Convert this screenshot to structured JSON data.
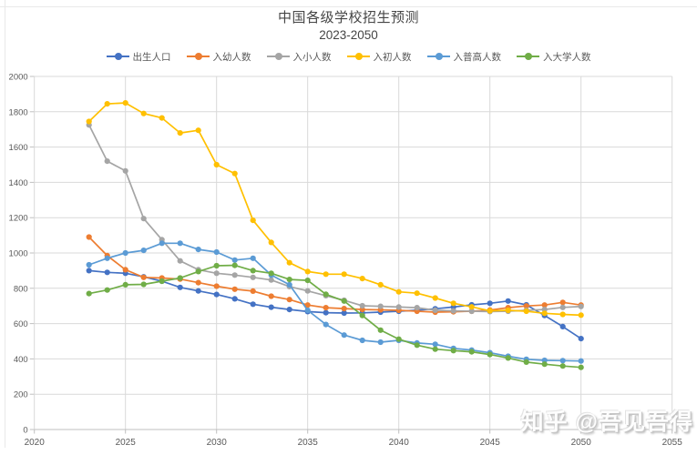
{
  "header": {
    "title": "中国各级学校招生预测",
    "subtitle": "2023-2050"
  },
  "watermark": {
    "text": "知乎 @吾见吾得"
  },
  "colors": {
    "grid": "#d9d9d9",
    "axis": "#bfbfbf",
    "tick_label": "#595959",
    "title_text": "#454545"
  },
  "chart_data": {
    "type": "line",
    "title": "中国各级学校招生预测",
    "subtitle": "2023-2050",
    "xlabel": "",
    "ylabel": "",
    "grid": true,
    "legend_position": "top",
    "x_axis": {
      "min": 2020,
      "max": 2055,
      "tick_interval": 5,
      "ticks": [
        2020,
        2025,
        2030,
        2035,
        2040,
        2045,
        2050,
        2055
      ]
    },
    "y_axis": {
      "min": 0,
      "max": 2000,
      "tick_interval": 200,
      "ticks": [
        0,
        200,
        400,
        600,
        800,
        1000,
        1200,
        1400,
        1600,
        1800,
        2000
      ]
    },
    "x": [
      2023,
      2024,
      2025,
      2026,
      2027,
      2028,
      2029,
      2030,
      2031,
      2032,
      2033,
      2034,
      2035,
      2036,
      2037,
      2038,
      2039,
      2040,
      2041,
      2042,
      2043,
      2044,
      2045,
      2046,
      2047,
      2048,
      2049,
      2050
    ],
    "series": [
      {
        "name": "出生人口",
        "color": "#4472c4",
        "values": [
          900,
          890,
          885,
          865,
          840,
          805,
          785,
          765,
          740,
          710,
          693,
          680,
          668,
          662,
          660,
          661,
          665,
          670,
          676,
          684,
          694,
          706,
          715,
          728,
          706,
          646,
          583,
          515
        ]
      },
      {
        "name": "入幼人数",
        "color": "#ed7d31",
        "values": [
          1090,
          985,
          905,
          862,
          858,
          852,
          832,
          812,
          795,
          784,
          755,
          736,
          705,
          690,
          685,
          680,
          678,
          675,
          670,
          665,
          667,
          670,
          677,
          690,
          700,
          705,
          720,
          705
        ]
      },
      {
        "name": "入小人数",
        "color": "#a5a5a5",
        "values": [
          1725,
          1520,
          1465,
          1195,
          1075,
          955,
          905,
          885,
          875,
          862,
          847,
          810,
          785,
          758,
          732,
          701,
          698,
          694,
          690,
          676,
          672,
          670,
          668,
          670,
          675,
          680,
          692,
          697
        ]
      },
      {
        "name": "入初人数",
        "color": "#ffc000",
        "values": [
          1745,
          1845,
          1850,
          1790,
          1765,
          1680,
          1695,
          1500,
          1450,
          1185,
          1060,
          945,
          895,
          880,
          880,
          855,
          820,
          780,
          772,
          745,
          715,
          695,
          672,
          675,
          670,
          658,
          652,
          648
        ]
      },
      {
        "name": "入普高人数",
        "color": "#5b9bd5",
        "values": [
          933,
          970,
          1000,
          1015,
          1055,
          1055,
          1020,
          1005,
          960,
          970,
          875,
          820,
          675,
          595,
          535,
          505,
          495,
          505,
          490,
          483,
          460,
          450,
          435,
          415,
          398,
          392,
          390,
          388
        ]
      },
      {
        "name": "入大学人数",
        "color": "#70ad47",
        "values": [
          770,
          790,
          820,
          822,
          840,
          858,
          895,
          928,
          930,
          900,
          885,
          850,
          845,
          766,
          728,
          646,
          563,
          512,
          478,
          455,
          447,
          440,
          425,
          405,
          382,
          370,
          360,
          352
        ]
      }
    ]
  }
}
